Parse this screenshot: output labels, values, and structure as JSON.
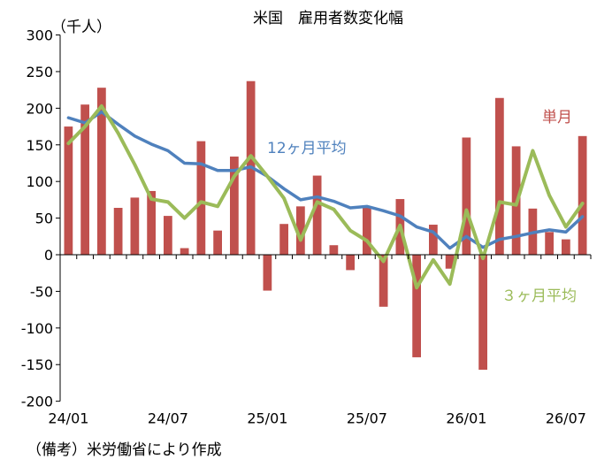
{
  "chart_data": {
    "type": "bar+line",
    "title": "米国　雇用者数変化幅",
    "unit_label": "（千人）",
    "note": "（備考）米労働省により作成",
    "ylim": [
      -200,
      300
    ],
    "y_ticks": [
      300,
      250,
      200,
      150,
      100,
      50,
      0,
      -50,
      -100,
      -150,
      -200
    ],
    "x_tick_labels": [
      "24/01",
      "24/07",
      "25/01",
      "25/07",
      "26/01",
      "26/07"
    ],
    "x_tick_months": [
      "2024-01",
      "2024-07",
      "2025-01",
      "2025-07",
      "2026-01",
      "2026-07"
    ],
    "grid": false,
    "months": [
      "2024-01",
      "2024-02",
      "2024-03",
      "2024-04",
      "2024-05",
      "2024-06",
      "2024-07",
      "2024-08",
      "2024-09",
      "2024-10",
      "2024-11",
      "2024-12",
      "2025-01",
      "2025-02",
      "2025-03",
      "2025-04",
      "2025-05",
      "2025-06",
      "2025-07",
      "2025-08",
      "2025-09",
      "2025-10",
      "2025-11",
      "2025-12",
      "2026-01",
      "2026-02",
      "2026-03",
      "2026-04",
      "2026-05",
      "2026-06",
      "2026-07",
      "2026-08"
    ],
    "series": [
      {
        "name": "単月",
        "type": "bar",
        "color": "#c0504d",
        "values": [
          175,
          205,
          228,
          64,
          78,
          87,
          53,
          9,
          155,
          33,
          134,
          237,
          -49,
          42,
          66,
          108,
          13,
          -21,
          66,
          -71,
          76,
          -140,
          41,
          -19,
          160,
          -157,
          214,
          148,
          63,
          31,
          21,
          162
        ]
      },
      {
        "name": "12ヶ月平均",
        "type": "line",
        "color": "#4f81bd",
        "values": [
          187,
          180,
          195,
          178,
          162,
          151,
          142,
          125,
          124,
          115,
          115,
          120,
          107,
          90,
          75,
          79,
          73,
          64,
          66,
          60,
          53,
          38,
          31,
          9,
          25,
          10,
          21,
          25,
          30,
          34,
          31,
          52
        ]
      },
      {
        "name": "３ヶ月平均",
        "type": "line",
        "color": "#9bbb59",
        "values": [
          152,
          175,
          203,
          166,
          123,
          76,
          72,
          50,
          72,
          66,
          107,
          135,
          107,
          77,
          20,
          72,
          62,
          33,
          19,
          -9,
          40,
          -45,
          -7,
          -40,
          61,
          -5,
          72,
          68,
          142,
          81,
          38,
          70
        ]
      }
    ]
  }
}
